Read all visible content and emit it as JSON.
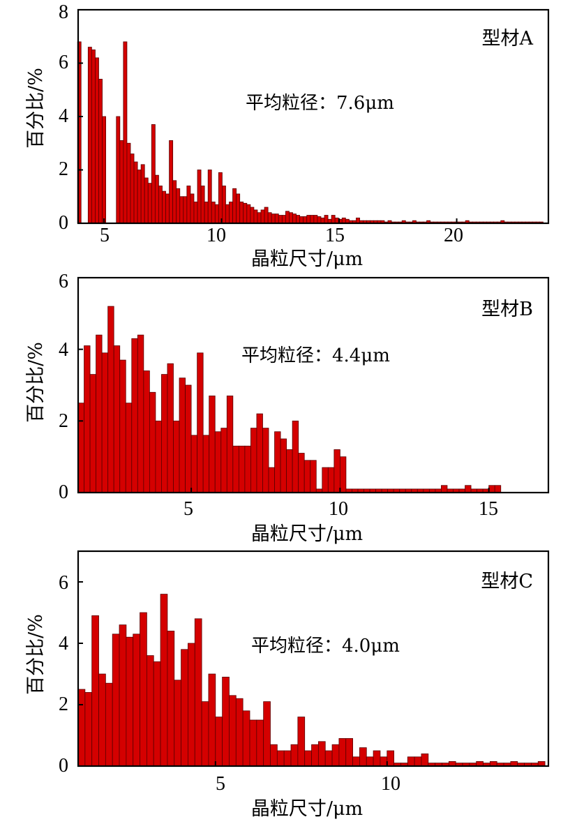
{
  "chart_data": [
    {
      "type": "bar",
      "panel_label": "型材A",
      "annotation": "平均粒径：7.6μm",
      "xlabel": "晶粒尺寸/μm",
      "ylabel": "百分比/%",
      "xlim": [
        3.9,
        23.9
      ],
      "ylim": [
        0,
        8
      ],
      "xticks": [
        "5",
        "10",
        "15",
        "20"
      ],
      "yticks": [
        "0",
        "2",
        "4",
        "6",
        "8"
      ],
      "bar_width": 0.15,
      "color": "#d40000",
      "x": [
        3.95,
        4.4,
        4.55,
        4.7,
        4.85,
        5.0,
        5.15,
        5.6,
        5.75,
        5.9,
        6.05,
        6.2,
        6.35,
        6.5,
        6.65,
        6.8,
        6.95,
        7.1,
        7.25,
        7.4,
        7.55,
        7.7,
        7.85,
        8.0,
        8.15,
        8.3,
        8.45,
        8.6,
        8.75,
        8.9,
        9.05,
        9.2,
        9.35,
        9.5,
        9.65,
        9.8,
        9.95,
        10.1,
        10.25,
        10.4,
        10.55,
        10.7,
        10.85,
        11.0,
        11.15,
        11.3,
        11.45,
        11.6,
        11.75,
        11.9,
        12.05,
        12.2,
        12.35,
        12.5,
        12.65,
        12.8,
        12.95,
        13.1,
        13.25,
        13.4,
        13.55,
        13.7,
        13.85,
        14.0,
        14.15,
        14.3,
        14.45,
        14.6,
        14.75,
        14.9,
        15.05,
        15.2,
        15.35,
        15.5,
        15.65,
        15.8,
        15.95,
        16.1,
        16.25,
        16.4,
        16.55,
        16.7,
        16.85,
        17.0,
        17.15,
        17.3,
        17.45,
        17.6,
        17.75,
        17.9,
        18.05,
        18.2,
        18.35,
        18.5,
        18.65,
        18.8,
        18.95,
        19.1,
        19.25,
        19.4,
        19.55,
        19.7,
        19.85,
        20.0,
        20.15,
        20.3,
        20.45,
        20.6,
        20.75,
        20.9,
        21.05,
        21.2,
        21.35,
        21.5,
        21.65,
        21.8,
        21.95,
        22.1,
        22.25,
        22.4,
        22.55,
        22.7,
        22.85,
        23.0,
        23.15,
        23.3,
        23.45,
        23.6
      ],
      "values": [
        6.8,
        6.6,
        6.5,
        6.2,
        5.4,
        4.0,
        0,
        4.0,
        3.1,
        6.8,
        3.0,
        2.6,
        2.3,
        2.0,
        2.2,
        1.7,
        1.5,
        3.7,
        1.8,
        1.4,
        1.2,
        1.1,
        3.1,
        1.6,
        1.3,
        1.0,
        1.0,
        1.4,
        1.1,
        0.8,
        2.0,
        1.4,
        0.8,
        2.0,
        0.8,
        0.7,
        1.9,
        1.4,
        0.7,
        0.8,
        1.3,
        1.1,
        0.8,
        0.75,
        0.7,
        0.6,
        0.5,
        0.4,
        0.5,
        0.6,
        0.4,
        0.35,
        0.35,
        0.3,
        0.3,
        0.45,
        0.4,
        0.35,
        0.3,
        0.25,
        0.25,
        0.3,
        0.3,
        0.3,
        0.25,
        0.2,
        0.3,
        0.15,
        0.3,
        0.2,
        0.15,
        0.2,
        0.15,
        0.1,
        0.1,
        0.2,
        0.1,
        0.1,
        0.1,
        0.1,
        0.1,
        0.1,
        0.1,
        0.05,
        0.1,
        0.05,
        0.05,
        0.05,
        0.1,
        0.05,
        0.05,
        0.1,
        0.05,
        0.05,
        0.05,
        0.1,
        0.05,
        0.05,
        0.05,
        0.05,
        0.05,
        0.05,
        0.05,
        0.05,
        0.05,
        0.05,
        0.1,
        0.05,
        0.05,
        0.05,
        0.05,
        0.05,
        0.05,
        0.05,
        0.05,
        0.05,
        0.1,
        0.05,
        0.05,
        0.05,
        0.05,
        0.05,
        0.05,
        0.05,
        0.05,
        0.05,
        0.05,
        0.05
      ]
    },
    {
      "type": "bar",
      "panel_label": "型材B",
      "annotation": "平均粒径：4.4μm",
      "xlabel": "晶粒尺寸/μm",
      "ylabel": "百分比/%",
      "xlim": [
        1.2,
        17.0
      ],
      "ylim": [
        0,
        6
      ],
      "xticks": [
        "5",
        "10",
        "15"
      ],
      "yticks": [
        "0",
        "2",
        "4",
        "6"
      ],
      "bar_width": 0.2,
      "color": "#d40000",
      "x": [
        1.3,
        1.5,
        1.7,
        1.9,
        2.1,
        2.3,
        2.5,
        2.7,
        2.9,
        3.1,
        3.3,
        3.5,
        3.7,
        3.9,
        4.1,
        4.3,
        4.5,
        4.7,
        4.9,
        5.1,
        5.3,
        5.5,
        5.7,
        5.9,
        6.1,
        6.3,
        6.5,
        6.7,
        6.9,
        7.1,
        7.3,
        7.5,
        7.7,
        7.9,
        8.1,
        8.3,
        8.5,
        8.7,
        8.9,
        9.1,
        9.3,
        9.5,
        9.7,
        9.9,
        10.1,
        10.3,
        10.5,
        10.7,
        10.9,
        11.1,
        11.3,
        11.5,
        11.7,
        11.9,
        12.1,
        12.3,
        12.5,
        12.7,
        12.9,
        13.1,
        13.3,
        13.5,
        13.7,
        13.9,
        14.1,
        14.3,
        14.5,
        14.7,
        14.9,
        15.1,
        15.3
      ],
      "values": [
        2.5,
        4.1,
        3.3,
        4.4,
        3.9,
        5.2,
        4.1,
        3.7,
        2.5,
        4.3,
        4.4,
        3.4,
        2.8,
        2.0,
        3.3,
        3.6,
        2.0,
        3.2,
        3.0,
        1.6,
        3.9,
        1.6,
        2.7,
        1.7,
        1.8,
        2.7,
        1.3,
        1.3,
        1.3,
        1.8,
        2.2,
        1.8,
        0.7,
        1.7,
        1.5,
        1.2,
        2.0,
        1.1,
        0.9,
        0.9,
        0.1,
        0.7,
        0.7,
        1.2,
        1.0,
        0.1,
        0.1,
        0.1,
        0.1,
        0.1,
        0.1,
        0.1,
        0.1,
        0.1,
        0.1,
        0.1,
        0.1,
        0.1,
        0.1,
        0.1,
        0.1,
        0.2,
        0.1,
        0.1,
        0.1,
        0.2,
        0.1,
        0.1,
        0.1,
        0.2,
        0.2
      ]
    },
    {
      "type": "bar",
      "panel_label": "型材C",
      "annotation": "平均粒径：4.0μm",
      "xlabel": "晶粒尺寸/μm",
      "ylabel": "百分比/%",
      "xlim": [
        1.0,
        14.7
      ],
      "ylim": [
        0,
        7
      ],
      "xticks": [
        "5",
        "10"
      ],
      "yticks": [
        "0",
        "2",
        "4",
        "6"
      ],
      "bar_width": 0.2,
      "color": "#d40000",
      "x": [
        1.1,
        1.3,
        1.5,
        1.7,
        1.9,
        2.1,
        2.3,
        2.5,
        2.7,
        2.9,
        3.1,
        3.3,
        3.5,
        3.7,
        3.9,
        4.1,
        4.3,
        4.5,
        4.7,
        4.9,
        5.1,
        5.3,
        5.5,
        5.7,
        5.9,
        6.1,
        6.3,
        6.5,
        6.7,
        6.9,
        7.1,
        7.3,
        7.5,
        7.7,
        7.9,
        8.1,
        8.3,
        8.5,
        8.7,
        8.9,
        9.1,
        9.3,
        9.5,
        9.7,
        9.9,
        10.1,
        10.3,
        10.5,
        10.7,
        10.9,
        11.1,
        11.3,
        11.5,
        11.7,
        11.9,
        12.1,
        12.3,
        12.5,
        12.7,
        12.9,
        13.1,
        13.3,
        13.5,
        13.7,
        13.9,
        14.1,
        14.3,
        14.5
      ],
      "values": [
        2.5,
        2.4,
        4.9,
        3.0,
        2.7,
        4.3,
        4.6,
        4.2,
        4.3,
        5.0,
        3.6,
        3.4,
        5.6,
        4.4,
        2.8,
        3.8,
        4.0,
        4.8,
        2.1,
        3.0,
        1.6,
        2.9,
        2.3,
        2.2,
        1.8,
        1.5,
        1.5,
        2.1,
        0.7,
        0.5,
        0.5,
        0.7,
        1.6,
        0.5,
        0.7,
        0.8,
        0.5,
        0.7,
        0.9,
        0.9,
        0.3,
        0.6,
        0.3,
        0.5,
        0.3,
        0.5,
        0.1,
        0.1,
        0.3,
        0.3,
        0.4,
        0.1,
        0.1,
        0.1,
        0.15,
        0.1,
        0.1,
        0.1,
        0.15,
        0.1,
        0.15,
        0.1,
        0.1,
        0.15,
        0.1,
        0.1,
        0.1,
        0.15
      ]
    }
  ]
}
